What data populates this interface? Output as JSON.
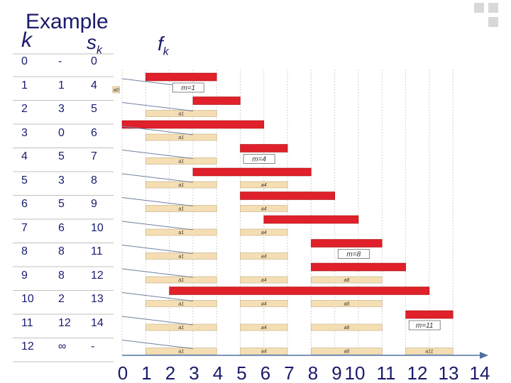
{
  "title": "Example",
  "headers": {
    "k": "k",
    "s": "s",
    "s_sub": "k",
    "f": "f",
    "f_sub": "k"
  },
  "rows": [
    {
      "k": "0",
      "s": "-",
      "f": "0"
    },
    {
      "k": "1",
      "s": "1",
      "f": "4"
    },
    {
      "k": "2",
      "s": "3",
      "f": "5"
    },
    {
      "k": "3",
      "s": "0",
      "f": "6"
    },
    {
      "k": "4",
      "s": "5",
      "f": "7"
    },
    {
      "k": "5",
      "s": "3",
      "f": "8"
    },
    {
      "k": "6",
      "s": "5",
      "f": "9"
    },
    {
      "k": "7",
      "s": "6",
      "f": "10"
    },
    {
      "k": "8",
      "s": "8",
      "f": "11"
    },
    {
      "k": "9",
      "s": "8",
      "f": "12"
    },
    {
      "k": "10",
      "s": "2",
      "f": "13"
    },
    {
      "k": "11",
      "s": "12",
      "f": "14"
    },
    {
      "k": "12",
      "s": "∞",
      "f": "-"
    }
  ],
  "axis_ticks": [
    "0",
    "1",
    "2",
    "3",
    "4",
    "5",
    "6",
    "7",
    "8",
    "9",
    "10",
    "11",
    "12",
    "13",
    "14"
  ],
  "selected_labels": [
    "a0",
    "a1",
    "a4",
    "a8",
    "a11"
  ],
  "m_labels": [
    "m=1",
    "m=4",
    "m=8",
    "m=11"
  ],
  "colors": {
    "red": "#e0202a",
    "tan": "#f5deb3",
    "grid": "#c0c0c0",
    "text": "#1a1a6e"
  },
  "gantt": [
    {
      "red": {
        "s": 1,
        "f": 4
      },
      "m": "m=1",
      "chosen": [
        "a0"
      ]
    },
    {
      "red": {
        "s": 3,
        "f": 5
      },
      "chosen": [
        "a1"
      ]
    },
    {
      "red": {
        "s": 0,
        "f": 6
      },
      "chosen": [
        "a1"
      ]
    },
    {
      "red": {
        "s": 5,
        "f": 7
      },
      "m": "m=4",
      "chosen": [
        "a1"
      ]
    },
    {
      "red": {
        "s": 3,
        "f": 8
      },
      "chosen": [
        "a1",
        "a4"
      ]
    },
    {
      "red": {
        "s": 5,
        "f": 9
      },
      "chosen": [
        "a1",
        "a4"
      ]
    },
    {
      "red": {
        "s": 6,
        "f": 10
      },
      "chosen": [
        "a1",
        "a4"
      ]
    },
    {
      "red": {
        "s": 8,
        "f": 11
      },
      "m": "m=8",
      "chosen": [
        "a1",
        "a4"
      ]
    },
    {
      "red": {
        "s": 8,
        "f": 12
      },
      "chosen": [
        "a1",
        "a4",
        "a8"
      ]
    },
    {
      "red": {
        "s": 2,
        "f": 13
      },
      "chosen": [
        "a1",
        "a4",
        "a8"
      ]
    },
    {
      "red": {
        "s": 12,
        "f": 14
      },
      "m": "m=11",
      "chosen": [
        "a1",
        "a4",
        "a8"
      ]
    },
    {
      "chosen": [
        "a1",
        "a4",
        "a8",
        "a11"
      ]
    }
  ]
}
